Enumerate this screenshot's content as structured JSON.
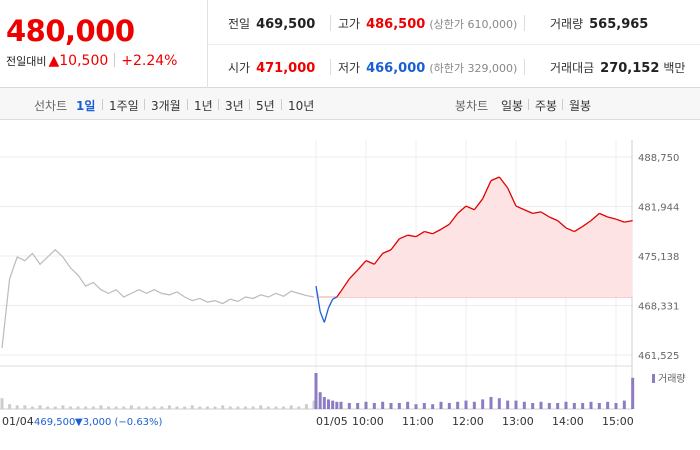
{
  "summary": {
    "price": "480,000",
    "change_label": "전일대비",
    "change_arrow": "▲",
    "change_value": "10,500",
    "change_pct": "+2.24%"
  },
  "stats": {
    "prev_close": {
      "label": "전일",
      "value": "469,500"
    },
    "high": {
      "label": "고가",
      "value": "486,500",
      "sub": "(상한가 610,000)"
    },
    "volume": {
      "label": "거래량",
      "value": "565,965"
    },
    "open": {
      "label": "시가",
      "value": "471,000"
    },
    "low": {
      "label": "저가",
      "value": "466,000",
      "sub": "(하한가 329,000)"
    },
    "amount": {
      "label": "거래대금",
      "value": "270,152",
      "unit": "백만"
    }
  },
  "toolbar": {
    "line_label": "선차트",
    "periods": [
      "1일",
      "1주일",
      "3개월",
      "1년",
      "3년",
      "5년",
      "10년"
    ],
    "selected_period": "1일",
    "candle_label": "봉차트",
    "candles": [
      "일봉",
      "주봉",
      "월봉"
    ]
  },
  "colors": {
    "up": "#e00000",
    "down": "#1a5fd6",
    "prev": "#bbbbbb",
    "volume": "#8d7cc4",
    "fill": "#fde3e3"
  },
  "chart_data": {
    "type": "line",
    "y_ticks": [
      "488,750",
      "481,944",
      "475,138",
      "468,331",
      "461,525"
    ],
    "ylim": [
      461525,
      488750
    ],
    "baseline": 469500,
    "x_labels": [
      "01/05",
      "10:00",
      "11:00",
      "12:00",
      "13:00",
      "14:00",
      "15:00"
    ],
    "prev_day": {
      "label": "01/04",
      "close": "469,500",
      "change": "▼3,000 (−0.63%)",
      "values": [
        462500,
        472000,
        475000,
        474500,
        475500,
        474000,
        475000,
        476000,
        475000,
        473500,
        472500,
        471000,
        471500,
        470500,
        470000,
        470500,
        469500,
        470000,
        470500,
        470000,
        470500,
        470000,
        469800,
        470200,
        469500,
        469000,
        469300,
        468800,
        469000,
        468600,
        469200,
        468900,
        469500,
        469300,
        469800,
        469500,
        470000,
        469600,
        470300,
        470000,
        469700,
        469500
      ]
    },
    "today": {
      "x": [
        "09:00",
        "09:05",
        "09:10",
        "09:15",
        "09:20",
        "09:25",
        "09:30",
        "09:40",
        "09:50",
        "10:00",
        "10:10",
        "10:20",
        "10:30",
        "10:40",
        "10:50",
        "11:00",
        "11:10",
        "11:20",
        "11:30",
        "11:40",
        "11:50",
        "12:00",
        "12:10",
        "12:20",
        "12:30",
        "12:40",
        "12:50",
        "13:00",
        "13:10",
        "13:20",
        "13:30",
        "13:40",
        "13:50",
        "14:00",
        "14:10",
        "14:20",
        "14:30",
        "14:40",
        "14:50",
        "15:00",
        "15:10",
        "15:20"
      ],
      "values": [
        471000,
        467500,
        466000,
        468000,
        469200,
        469500,
        470300,
        472000,
        473200,
        474500,
        474000,
        475500,
        476000,
        477500,
        478000,
        477800,
        478500,
        478200,
        478800,
        479500,
        481000,
        482000,
        481500,
        483000,
        485500,
        486000,
        484500,
        482000,
        481500,
        481000,
        481200,
        480500,
        480000,
        479000,
        478500,
        479200,
        480000,
        481000,
        480500,
        480200,
        479800,
        480000
      ]
    },
    "volume": {
      "legend": "거래량",
      "prev_day": [
        9,
        4,
        3,
        3,
        2,
        3,
        2,
        2,
        3,
        2,
        2,
        2,
        2,
        3,
        2,
        2,
        2,
        3,
        2,
        2,
        2,
        2,
        3,
        2,
        2,
        3,
        2,
        2,
        2,
        3,
        2,
        2,
        2,
        2,
        3,
        2,
        2,
        2,
        3,
        2,
        4,
        7
      ],
      "today": [
        30,
        14,
        10,
        8,
        7,
        6,
        6,
        5,
        5,
        6,
        5,
        6,
        5,
        5,
        6,
        4,
        5,
        4,
        6,
        5,
        6,
        7,
        6,
        8,
        10,
        9,
        7,
        7,
        6,
        5,
        6,
        5,
        5,
        6,
        5,
        5,
        6,
        5,
        6,
        5,
        7,
        26
      ]
    }
  }
}
